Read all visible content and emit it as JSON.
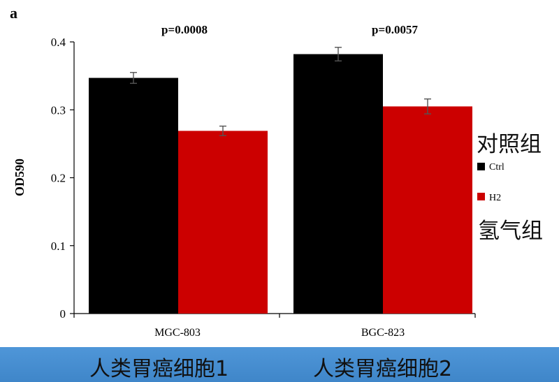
{
  "panel_label": "a",
  "chart_data": {
    "type": "bar",
    "title": "",
    "xlabel": "",
    "ylabel": "OD590",
    "ylim": [
      0,
      0.4
    ],
    "yticks": [
      "0",
      "0.1",
      "0.2",
      "0.3",
      "0.4"
    ],
    "categories": [
      "MGC-803",
      "BGC-823"
    ],
    "series": [
      {
        "name": "Ctrl",
        "color": "#000000",
        "values": [
          0.347,
          0.382
        ],
        "errors": [
          0.008,
          0.01
        ]
      },
      {
        "name": "H2",
        "color": "#cc0000",
        "values": [
          0.269,
          0.305
        ],
        "errors": [
          0.007,
          0.011
        ]
      }
    ],
    "pvalues": [
      "p=0.0008",
      "p=0.0057"
    ],
    "legend_position": "right"
  },
  "annotations": {
    "ctrl_cn": "对照组",
    "h2_cn": "氢气组"
  },
  "bottom_labels": [
    "人类胃癌细胞1",
    "人类胃癌细胞2"
  ]
}
